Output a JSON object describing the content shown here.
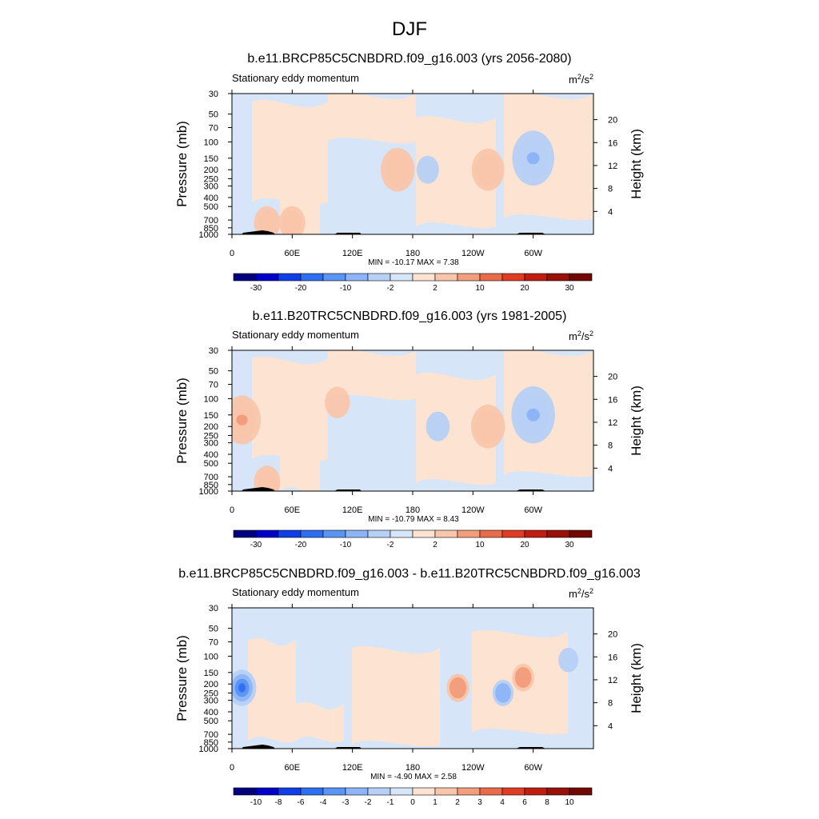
{
  "figure": {
    "title": "DJF"
  },
  "colors": {
    "scale": [
      "#00007f",
      "#0000c8",
      "#0f3ee6",
      "#2e6ef0",
      "#5a94f4",
      "#8cb4f6",
      "#b7d0f6",
      "#d6e6f8",
      "#fde4d2",
      "#f9c6ab",
      "#f29d7b",
      "#ea6b49",
      "#e03c24",
      "#c01d12",
      "#981008",
      "#700703"
    ]
  },
  "chart_data": [
    {
      "type": "heatmap",
      "title": "b.e11.BRCP85C5CNBDRD.f09_g16.003 (yrs 2056-2080)",
      "subtitle": "Stationary eddy momentum",
      "units": "m2/s2",
      "units_display": {
        "base": "m",
        "sup1": "2",
        "mid": "/s",
        "sup2": "2"
      },
      "xlabel": "",
      "ylabel": "Pressure (mb)",
      "y2label": "Height (km)",
      "x_ticks": [
        "0",
        "60E",
        "120E",
        "180",
        "120W",
        "60W"
      ],
      "y_ticks": [
        "30",
        "50",
        "70",
        "100",
        "150",
        "200",
        "250",
        "300",
        "400",
        "500",
        "700",
        "850",
        "1000"
      ],
      "y2_ticks": [
        "20",
        "16",
        "12",
        "8",
        "4"
      ],
      "stats": "MIN = -10.17  MAX =   7.38",
      "colorbar_labels": [
        "-30",
        "-20",
        "-10",
        "-2",
        "2",
        "10",
        "20",
        "30"
      ],
      "features": [
        {
          "lon": 165,
          "p": 200,
          "value": 7.0
        },
        {
          "lon": 35,
          "p": 750,
          "value": 4.0
        },
        {
          "lon": 60,
          "p": 750,
          "value": 4.0
        },
        {
          "lon": 255,
          "p": 200,
          "value": 6.5
        },
        {
          "lon": 300,
          "p": 150,
          "value": -10.17
        },
        {
          "lon": 195,
          "p": 200,
          "value": -2.5
        }
      ]
    },
    {
      "type": "heatmap",
      "title": "b.e11.B20TRC5CNBDRD.f09_g16.003 (yrs 1981-2005)",
      "subtitle": "Stationary eddy momentum",
      "units": "m2/s2",
      "units_display": {
        "base": "m",
        "sup1": "2",
        "mid": "/s",
        "sup2": "2"
      },
      "xlabel": "",
      "ylabel": "Pressure (mb)",
      "y2label": "Height (km)",
      "x_ticks": [
        "0",
        "60E",
        "120E",
        "180",
        "120W",
        "60W"
      ],
      "y_ticks": [
        "30",
        "50",
        "70",
        "100",
        "150",
        "200",
        "250",
        "300",
        "400",
        "500",
        "700",
        "850",
        "1000"
      ],
      "y2_ticks": [
        "20",
        "16",
        "12",
        "8",
        "4"
      ],
      "stats": "MIN = -10.79  MAX =   8.43",
      "colorbar_labels": [
        "-30",
        "-20",
        "-10",
        "-2",
        "2",
        "10",
        "20",
        "30"
      ],
      "features": [
        {
          "lon": 10,
          "p": 170,
          "value": 8.43
        },
        {
          "lon": 35,
          "p": 800,
          "value": 4.0
        },
        {
          "lon": 105,
          "p": 110,
          "value": 3.5
        },
        {
          "lon": 255,
          "p": 200,
          "value": 7.0
        },
        {
          "lon": 300,
          "p": 150,
          "value": -10.79
        },
        {
          "lon": 205,
          "p": 200,
          "value": -3.0
        }
      ]
    },
    {
      "type": "heatmap",
      "title": "b.e11.BRCP85C5CNBDRD.f09_g16.003 - b.e11.B20TRC5CNBDRD.f09_g16.003",
      "subtitle": "Stationary eddy momentum",
      "units": "m2/s2",
      "units_display": {
        "base": "m",
        "sup1": "2",
        "mid": "/s",
        "sup2": "2"
      },
      "xlabel": "",
      "ylabel": "Pressure (mb)",
      "y2label": "Height (km)",
      "x_ticks": [
        "0",
        "60E",
        "120E",
        "180",
        "120W",
        "60W"
      ],
      "y_ticks": [
        "30",
        "50",
        "70",
        "100",
        "150",
        "200",
        "250",
        "300",
        "400",
        "500",
        "700",
        "850",
        "1000"
      ],
      "y2_ticks": [
        "20",
        "16",
        "12",
        "8",
        "4"
      ],
      "stats": "MIN =  -4.90  MAX =   2.58",
      "colorbar_labels": [
        "-10",
        "-8",
        "-6",
        "-4",
        "-3",
        "-2",
        "-1",
        "0",
        "1",
        "2",
        "3",
        "4",
        "6",
        "8",
        "10"
      ],
      "features": [
        {
          "lon": 10,
          "p": 220,
          "value": -4.9
        },
        {
          "lon": 225,
          "p": 220,
          "value": 2.58
        },
        {
          "lon": 290,
          "p": 170,
          "value": 2.4
        },
        {
          "lon": 270,
          "p": 250,
          "value": -2.0
        },
        {
          "lon": 335,
          "p": 110,
          "value": -1.5
        }
      ]
    }
  ]
}
